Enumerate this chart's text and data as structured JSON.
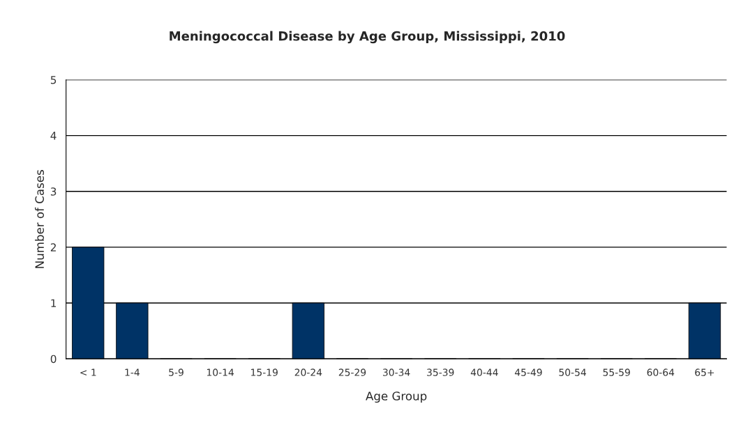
{
  "chart_data": {
    "type": "bar",
    "title": "Meningococcal Disease by Age Group, Mississippi, 2010",
    "xlabel": "Age Group",
    "ylabel": "Number of Cases",
    "categories": [
      "< 1",
      "1-4",
      "5-9",
      "10-14",
      "15-19",
      "20-24",
      "25-29",
      "30-34",
      "35-39",
      "40-44",
      "45-49",
      "50-54",
      "55-59",
      "60-64",
      "65+"
    ],
    "values": [
      2,
      1,
      0,
      0,
      0,
      1,
      0,
      0,
      0,
      0,
      0,
      0,
      0,
      0,
      1
    ],
    "color": "#003366",
    "ylim": [
      0,
      5
    ],
    "yticks": [
      0,
      1,
      2,
      3,
      4,
      5
    ],
    "grid": "y",
    "legend": false
  }
}
